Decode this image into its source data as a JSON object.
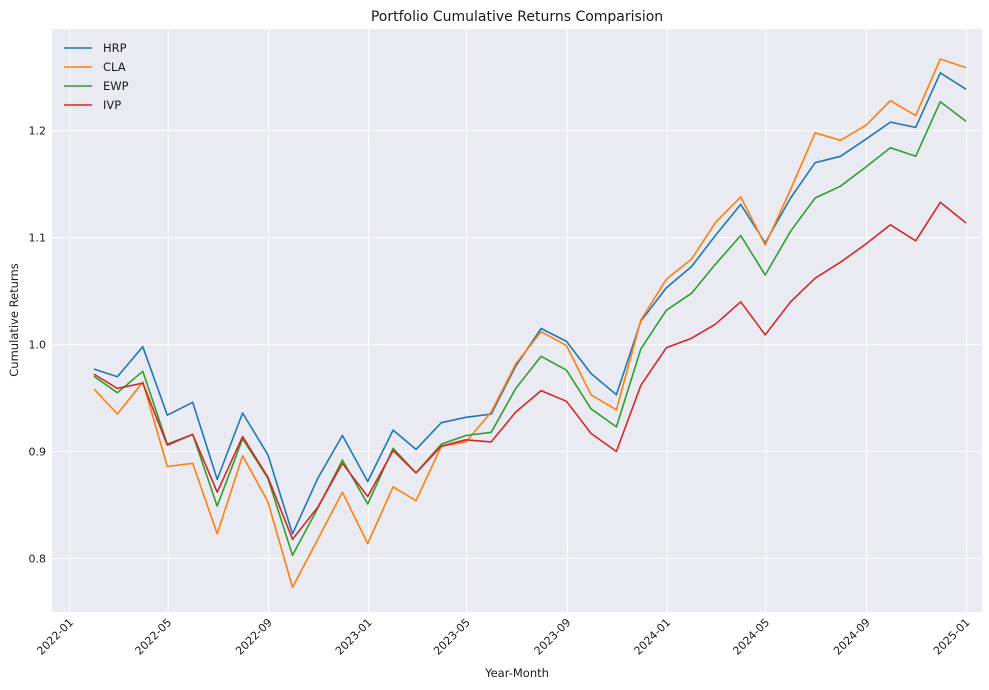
{
  "chart_data": {
    "type": "line",
    "title": "Portfolio Cumulative Returns Comparision",
    "xlabel": "Year-Month",
    "ylabel": "Cumulative Returns",
    "x_tick_labels": [
      "2022-01",
      "2022-05",
      "2022-09",
      "2023-01",
      "2023-05",
      "2023-09",
      "2024-01",
      "2024-05",
      "2024-09",
      "2025-01"
    ],
    "y_tick_labels": [
      "0.8",
      "0.9",
      "1.0",
      "1.1",
      "1.2"
    ],
    "y_ticks": [
      0.8,
      0.9,
      1.0,
      1.1,
      1.2
    ],
    "xlim": [
      "2021-12-10",
      "2025-01-20"
    ],
    "ylim": [
      0.75,
      1.295
    ],
    "grid": true,
    "legend": "top-left",
    "x": [
      "2022-01-31",
      "2022-02-28",
      "2022-03-31",
      "2022-04-30",
      "2022-05-31",
      "2022-06-30",
      "2022-07-31",
      "2022-08-31",
      "2022-09-30",
      "2022-10-31",
      "2022-11-30",
      "2022-12-31",
      "2023-01-31",
      "2023-02-28",
      "2023-03-31",
      "2023-04-30",
      "2023-05-31",
      "2023-06-30",
      "2023-07-31",
      "2023-08-31",
      "2023-09-30",
      "2023-10-31",
      "2023-11-30",
      "2023-12-31",
      "2024-01-31",
      "2024-02-29",
      "2024-03-31",
      "2024-04-30",
      "2024-05-31",
      "2024-06-30",
      "2024-07-31",
      "2024-08-31",
      "2024-09-30",
      "2024-10-31",
      "2024-11-30",
      "2024-12-31"
    ],
    "series": [
      {
        "name": "HRP",
        "color": "#1f77b4",
        "values": [
          0.977,
          0.97,
          0.998,
          0.934,
          0.946,
          0.874,
          0.936,
          0.897,
          0.823,
          0.875,
          0.915,
          0.872,
          0.92,
          0.902,
          0.927,
          0.932,
          0.935,
          0.98,
          1.015,
          1.003,
          0.973,
          0.953,
          1.022,
          1.053,
          1.073,
          1.102,
          1.131,
          1.095,
          1.137,
          1.17,
          1.176,
          1.192,
          1.208,
          1.203,
          1.254,
          1.239
        ]
      },
      {
        "name": "CLA",
        "color": "#ff7f0e",
        "values": [
          0.958,
          0.935,
          0.965,
          0.886,
          0.889,
          0.823,
          0.896,
          0.853,
          0.773,
          0.818,
          0.862,
          0.814,
          0.867,
          0.854,
          0.905,
          0.909,
          0.937,
          0.982,
          1.012,
          0.999,
          0.953,
          0.939,
          1.023,
          1.061,
          1.08,
          1.114,
          1.138,
          1.093,
          1.145,
          1.198,
          1.191,
          1.205,
          1.228,
          1.214,
          1.267,
          1.259
        ]
      },
      {
        "name": "EWP",
        "color": "#2ca02c",
        "values": [
          0.97,
          0.955,
          0.975,
          0.907,
          0.916,
          0.849,
          0.912,
          0.875,
          0.803,
          0.847,
          0.892,
          0.851,
          0.903,
          0.88,
          0.907,
          0.915,
          0.918,
          0.959,
          0.989,
          0.976,
          0.94,
          0.923,
          0.996,
          1.032,
          1.048,
          1.075,
          1.102,
          1.065,
          1.106,
          1.137,
          1.148,
          1.166,
          1.184,
          1.176,
          1.227,
          1.209
        ]
      },
      {
        "name": "IVP",
        "color": "#d62728",
        "values": [
          0.972,
          0.959,
          0.964,
          0.906,
          0.916,
          0.862,
          0.914,
          0.876,
          0.818,
          0.848,
          0.889,
          0.858,
          0.901,
          0.88,
          0.905,
          0.911,
          0.909,
          0.937,
          0.957,
          0.947,
          0.917,
          0.9,
          0.962,
          0.997,
          1.006,
          1.019,
          1.04,
          1.009,
          1.04,
          1.062,
          1.077,
          1.094,
          1.112,
          1.097,
          1.133,
          1.114
        ]
      }
    ]
  }
}
